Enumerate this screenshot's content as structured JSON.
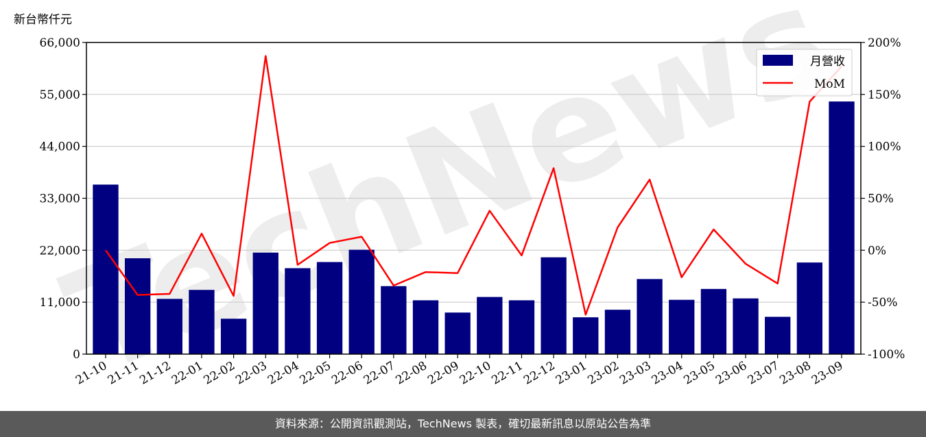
{
  "footer": {
    "source_text": "資料來源：公開資訊觀測站，TechNews 製表，確切最新訊息以原站公告為準"
  },
  "watermark": {
    "text": "TechNews"
  },
  "chart_data": {
    "type": "bar",
    "title": "",
    "ylabel": "新台幣仟元",
    "categories": [
      "21-10",
      "21-11",
      "21-12",
      "22-01",
      "22-02",
      "22-03",
      "22-04",
      "22-05",
      "22-06",
      "22-07",
      "22-08",
      "22-09",
      "22-10",
      "22-11",
      "22-12",
      "23-01",
      "23-02",
      "23-03",
      "23-04",
      "23-05",
      "23-06",
      "23-07",
      "23-08",
      "23-09"
    ],
    "series": [
      {
        "name": "月營收",
        "type": "bar",
        "axis": "left",
        "color": "#000080",
        "values": [
          35900,
          20300,
          11700,
          13600,
          7500,
          21500,
          18200,
          19500,
          22100,
          14400,
          11400,
          8800,
          12100,
          11400,
          20500,
          7800,
          9400,
          15900,
          11500,
          13800,
          11800,
          7900,
          19400,
          53500
        ]
      },
      {
        "name": "MoM",
        "type": "line",
        "axis": "right",
        "color": "#ff0000",
        "values": [
          0,
          -43,
          -42,
          16,
          -44,
          187,
          -14,
          7,
          13,
          -34,
          -21,
          -22,
          38,
          -5,
          79,
          -62,
          22,
          68,
          -26,
          20,
          -13,
          -32,
          143,
          177
        ]
      }
    ],
    "y_left": {
      "ticks": [
        "0",
        "11,000",
        "22,000",
        "33,000",
        "44,000",
        "55,000",
        "66,000"
      ],
      "lim": [
        0,
        66000
      ]
    },
    "y_right": {
      "ticks": [
        "-100%",
        "-50%",
        "0%",
        "50%",
        "100%",
        "150%",
        "200%"
      ],
      "lim": [
        -100,
        200
      ]
    },
    "grid": true,
    "legend": {
      "position": "top-right",
      "entries": [
        "月營收",
        "MoM"
      ]
    }
  }
}
